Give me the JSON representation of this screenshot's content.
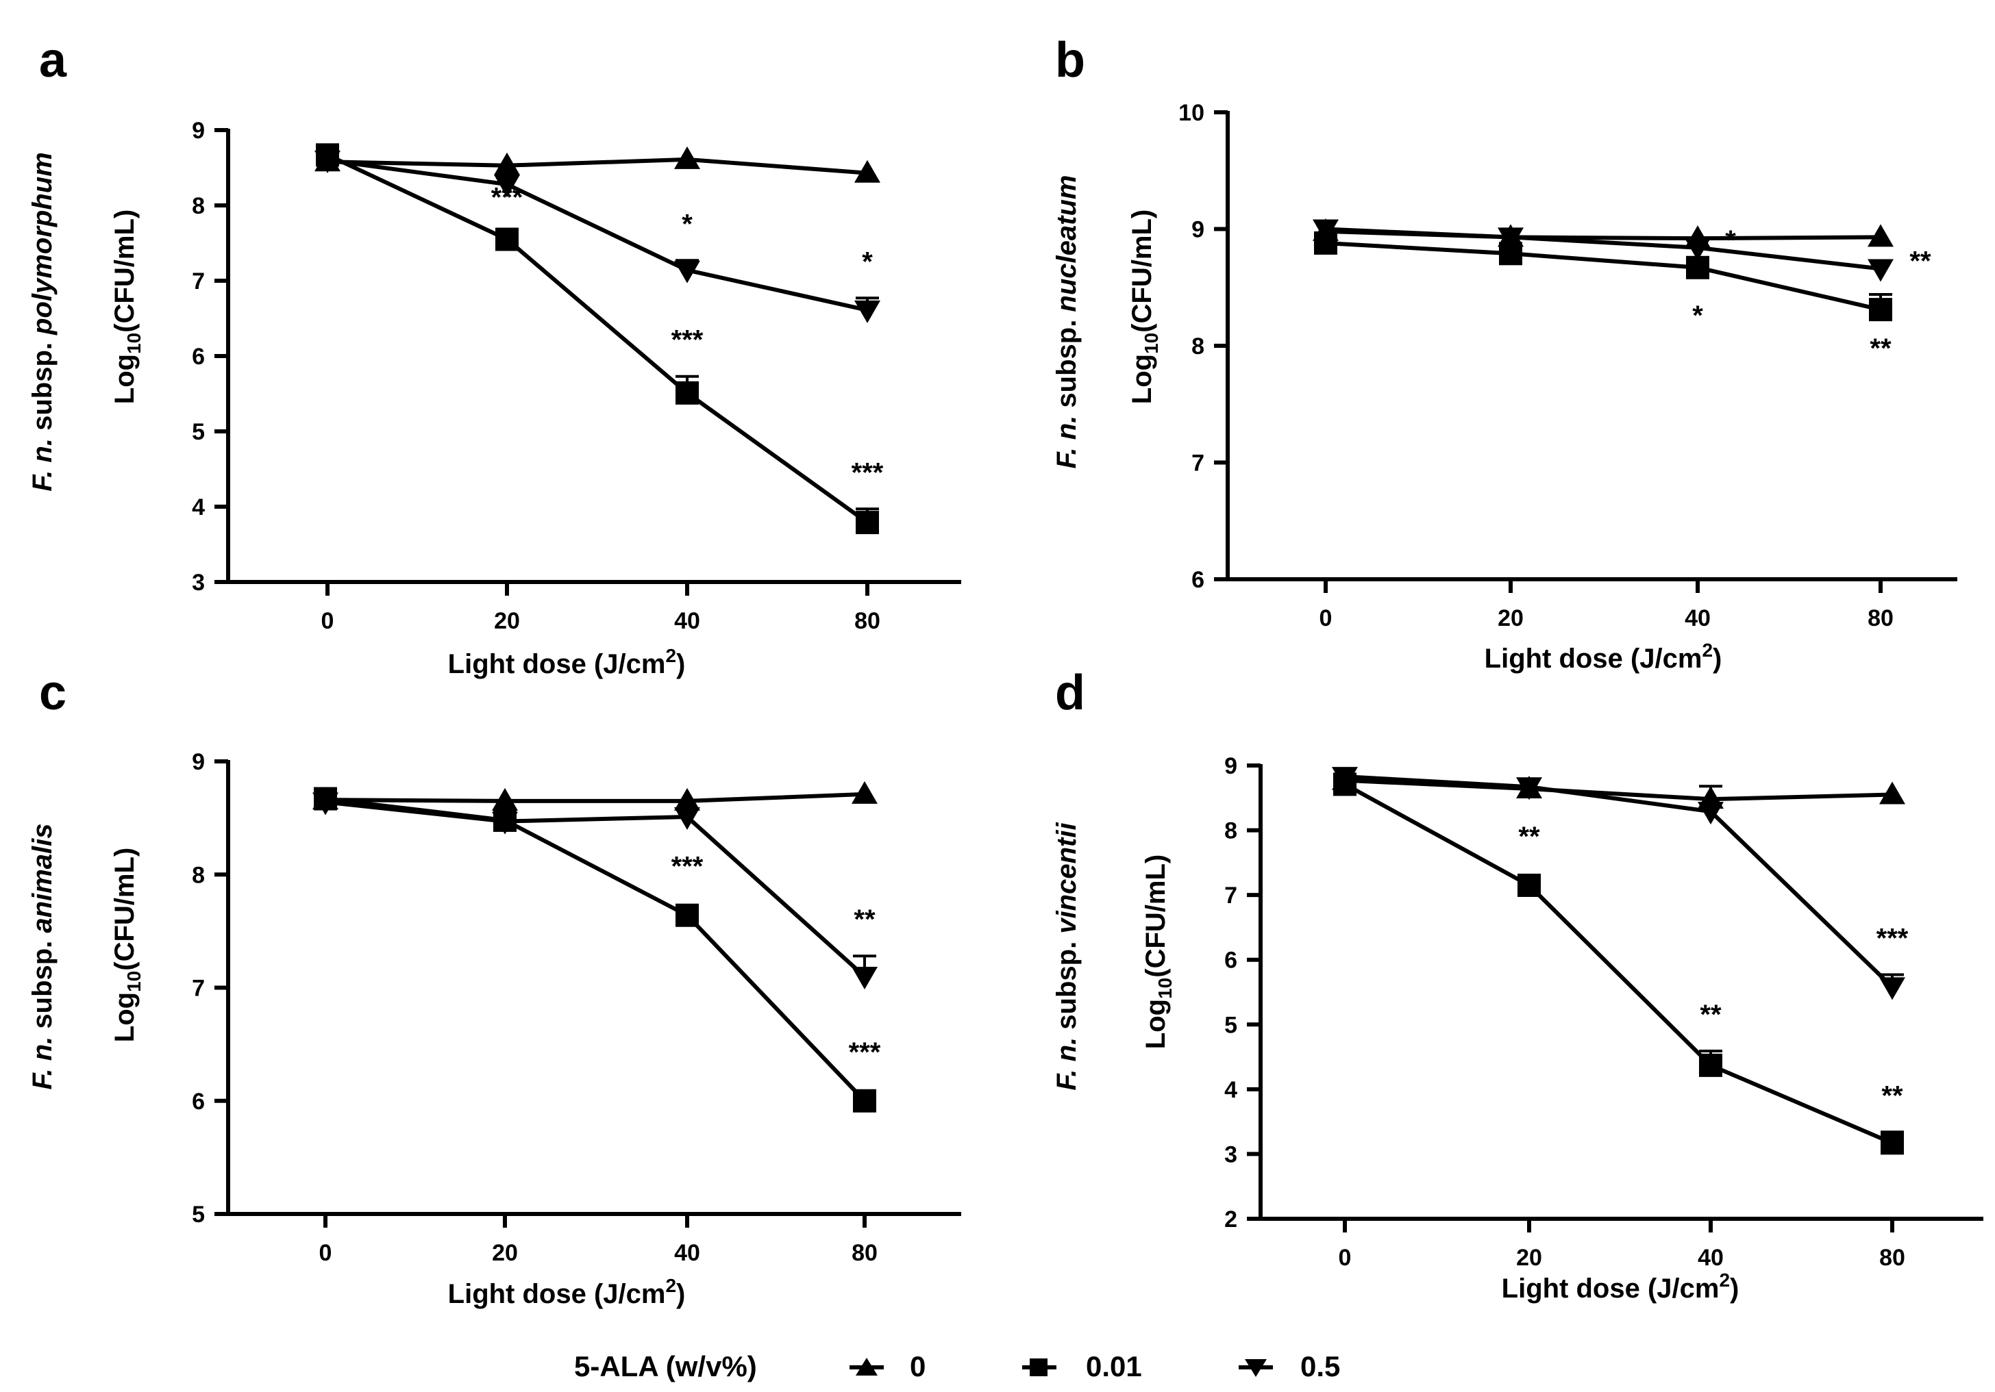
{
  "figure": {
    "x_label_main": "Light dose (J/cm",
    "x_label_sup": "2",
    "x_label_tail": ")",
    "y_label_prefix": "Log",
    "y_label_sub": "10",
    "y_label_suffix": "(CFU/mL)",
    "organism_prefix": "F. n.",
    "organism_middle": " subsp. "
  },
  "legend": {
    "title": "5-ALA (w/v%)",
    "entries": [
      {
        "label": "0",
        "marker": "triangle-up-icon"
      },
      {
        "label": "0.01",
        "marker": "square-icon"
      },
      {
        "label": "0.5",
        "marker": "triangle-down-icon"
      }
    ]
  },
  "chart_data": [
    {
      "panel": "a",
      "type": "line",
      "subspecies": "polymorphum",
      "categories": [
        "0",
        "20",
        "40",
        "80"
      ],
      "ylim": [
        3,
        9
      ],
      "yticks": [
        "3",
        "4",
        "5",
        "6",
        "7",
        "8",
        "9"
      ],
      "series": [
        {
          "name": "0",
          "marker": "triangle-up",
          "values": [
            8.58,
            8.53,
            8.61,
            8.43
          ],
          "errors": [
            0,
            0,
            0,
            0
          ],
          "sig": [
            "",
            "",
            "",
            ""
          ]
        },
        {
          "name": "0.01",
          "marker": "square",
          "values": [
            8.67,
            7.55,
            5.51,
            3.79
          ],
          "errors": [
            0,
            0,
            0.22,
            0.18
          ],
          "sig": [
            "",
            "***",
            "***",
            "***"
          ]
        },
        {
          "name": "0.5",
          "marker": "triangle-down",
          "values": [
            8.6,
            8.28,
            7.14,
            6.61
          ],
          "errors": [
            0,
            0,
            0.13,
            0.16
          ],
          "sig": [
            "",
            "",
            "*",
            "*"
          ]
        }
      ]
    },
    {
      "panel": "b",
      "type": "line",
      "subspecies": "nucleatum",
      "categories": [
        "0",
        "20",
        "40",
        "80"
      ],
      "ylim": [
        6,
        10
      ],
      "yticks": [
        "6",
        "7",
        "8",
        "9",
        "10"
      ],
      "series": [
        {
          "name": "0",
          "marker": "triangle-up",
          "values": [
            8.98,
            8.93,
            8.92,
            8.93
          ],
          "errors": [
            0,
            0,
            0,
            0
          ],
          "sig": [
            "",
            "",
            "",
            ""
          ]
        },
        {
          "name": "0.01",
          "marker": "square",
          "values": [
            8.88,
            8.79,
            8.67,
            8.31
          ],
          "errors": [
            0,
            0,
            0.05,
            0.13
          ],
          "sig": [
            "",
            "",
            "*",
            "**"
          ]
        },
        {
          "name": "0.5",
          "marker": "triangle-down",
          "values": [
            9.0,
            8.93,
            8.84,
            8.66
          ],
          "errors": [
            0,
            0,
            0,
            0
          ],
          "sig": [
            "",
            "",
            "*",
            "**"
          ]
        }
      ]
    },
    {
      "panel": "c",
      "type": "line",
      "subspecies": "animalis",
      "categories": [
        "0",
        "20",
        "40",
        "80"
      ],
      "ylim": [
        5,
        9
      ],
      "yticks": [
        "5",
        "6",
        "7",
        "8",
        "9"
      ],
      "series": [
        {
          "name": "0",
          "marker": "triangle-up",
          "values": [
            8.66,
            8.65,
            8.65,
            8.71
          ],
          "errors": [
            0,
            0,
            0,
            0
          ],
          "sig": [
            "",
            "",
            "",
            ""
          ]
        },
        {
          "name": "0.01",
          "marker": "square",
          "values": [
            8.67,
            8.48,
            7.64,
            6.0
          ],
          "errors": [
            0,
            0,
            0,
            0
          ],
          "sig": [
            "",
            "",
            "***",
            "***"
          ]
        },
        {
          "name": "0.5",
          "marker": "triangle-down",
          "values": [
            8.64,
            8.47,
            8.51,
            7.1
          ],
          "errors": [
            0,
            0,
            0,
            0.18
          ],
          "sig": [
            "",
            "",
            "",
            "**"
          ]
        }
      ]
    },
    {
      "panel": "d",
      "type": "line",
      "subspecies": "vincentii",
      "categories": [
        "0",
        "20",
        "40",
        "80"
      ],
      "ylim": [
        2,
        9
      ],
      "yticks": [
        "2",
        "3",
        "4",
        "5",
        "6",
        "7",
        "8",
        "9"
      ],
      "series": [
        {
          "name": "0",
          "marker": "triangle-up",
          "values": [
            8.77,
            8.64,
            8.48,
            8.55
          ],
          "errors": [
            0,
            0,
            0.2,
            0
          ],
          "sig": [
            "",
            "",
            "",
            ""
          ]
        },
        {
          "name": "0.01",
          "marker": "square",
          "values": [
            8.71,
            7.15,
            4.37,
            3.17
          ],
          "errors": [
            0,
            0,
            0.22,
            0.17
          ],
          "sig": [
            "",
            "**",
            "**",
            "**"
          ]
        },
        {
          "name": "0.5",
          "marker": "triangle-down",
          "values": [
            8.83,
            8.67,
            8.29,
            5.58
          ],
          "errors": [
            0,
            0,
            0,
            0.19
          ],
          "sig": [
            "",
            "",
            "",
            "***"
          ]
        }
      ]
    }
  ]
}
